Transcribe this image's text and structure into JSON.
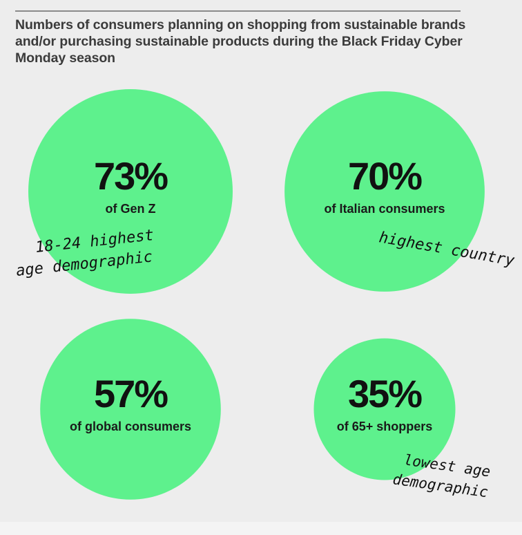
{
  "chart_data": {
    "type": "bubble",
    "title": "Numbers of consumers planning on shopping from sustainable brands and/or purchasing sustainable products during the Black Friday Cyber Monday season",
    "unit": "%",
    "bubble_color": "#5ef18d",
    "items": [
      {
        "value": 73,
        "value_label": "73%",
        "label": "of Gen Z",
        "annotation": [
          "18-24 highest",
          "age demographic"
        ]
      },
      {
        "value": 70,
        "value_label": "70%",
        "label": "of Italian consumers",
        "annotation": [
          "highest country"
        ]
      },
      {
        "value": 57,
        "value_label": "57%",
        "label": "of global consumers",
        "annotation": []
      },
      {
        "value": 35,
        "value_label": "35%",
        "label": "of 65+ shoppers",
        "annotation": [
          "lowest age",
          "demographic"
        ]
      }
    ]
  }
}
